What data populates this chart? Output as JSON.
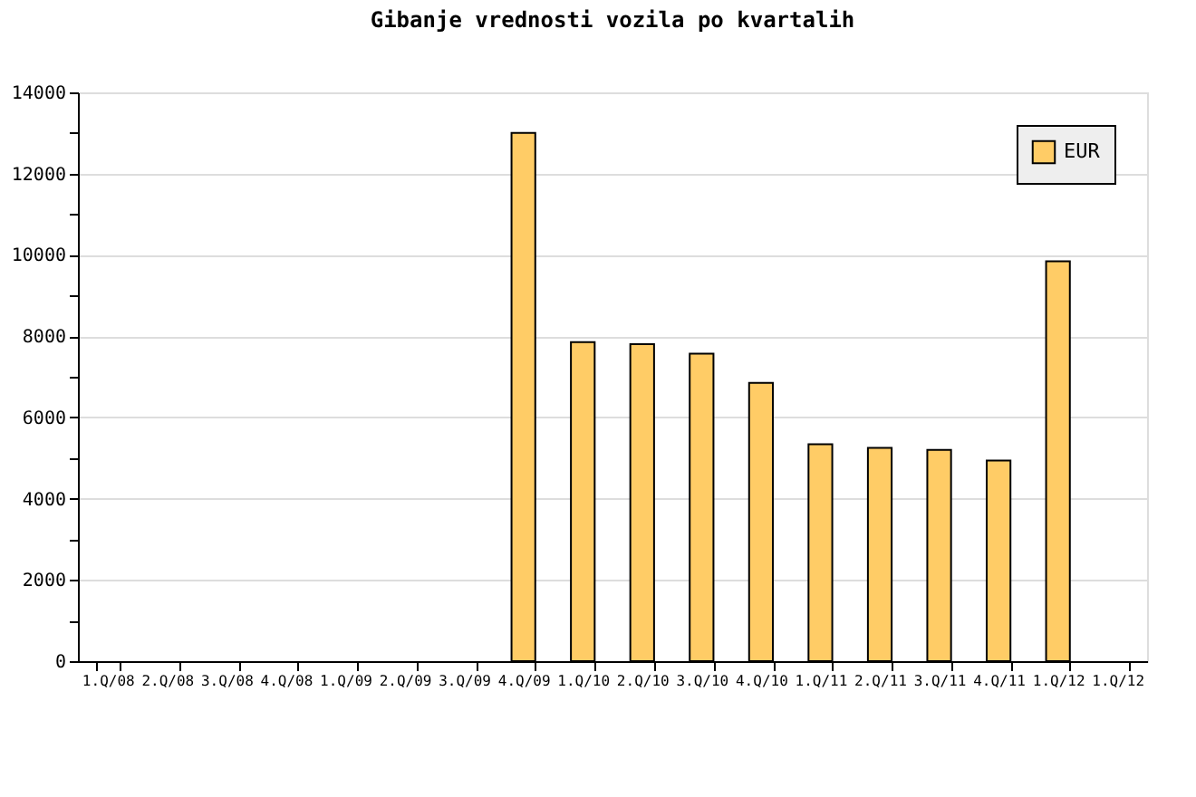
{
  "chart_data": {
    "type": "bar",
    "title": "Gibanje vrednosti vozila po kvartalih",
    "categories": [
      "1.Q/08",
      "2.Q/08",
      "3.Q/08",
      "4.Q/08",
      "1.Q/09",
      "2.Q/09",
      "3.Q/09",
      "4.Q/09",
      "1.Q/10",
      "2.Q/10",
      "3.Q/10",
      "4.Q/10",
      "1.Q/11",
      "2.Q/11",
      "3.Q/11",
      "4.Q/11",
      "1.Q/12",
      "1.Q/12"
    ],
    "series": [
      {
        "name": "EUR",
        "color": "#ffcc66",
        "values": [
          null,
          null,
          null,
          null,
          null,
          null,
          null,
          13000,
          7850,
          7800,
          7570,
          6850,
          5340,
          5250,
          5200,
          4940,
          9840,
          null
        ]
      }
    ],
    "ylim": [
      0,
      14000
    ],
    "yticks": [
      0,
      {
        "value": 1000,
        "label": null
      },
      2000,
      {
        "value": 3000,
        "label": null
      },
      4000,
      {
        "value": 5000,
        "label": null
      },
      6000,
      {
        "value": 7000,
        "label": null
      },
      8000,
      {
        "value": 9000,
        "label": null
      },
      10000,
      {
        "value": 11000,
        "label": null
      },
      12000,
      {
        "value": 13000,
        "label": null
      },
      14000
    ],
    "grid": "y",
    "legend": "top right"
  }
}
